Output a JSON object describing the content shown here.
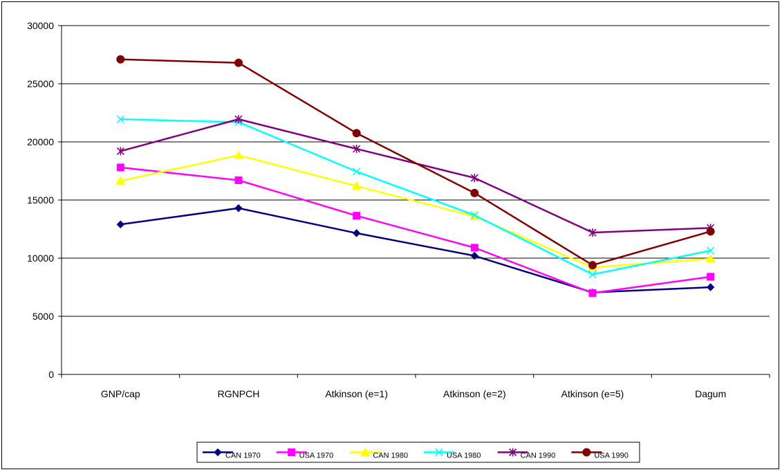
{
  "chart_data": {
    "type": "line",
    "title": "",
    "xlabel": "",
    "ylabel": "",
    "categories": [
      "GNP/cap",
      "RGNPCH",
      "Atkinson (e=1)",
      "Atkinson (e=2)",
      "Atkinson (e=5)",
      "Dagum"
    ],
    "ylim": [
      0,
      30000
    ],
    "yticks": [
      0,
      5000,
      10000,
      15000,
      20000,
      25000,
      30000
    ],
    "grid": "horizontal major gridlines",
    "legend_position": "bottom",
    "series": [
      {
        "name": "CAN 1970",
        "color": "#000080",
        "marker": "diamond",
        "values": [
          12900,
          14300,
          12150,
          10200,
          7050,
          7500
        ]
      },
      {
        "name": "USA 1970",
        "color": "#FF00FF",
        "marker": "square",
        "values": [
          17800,
          16700,
          13650,
          10900,
          7000,
          8400
        ]
      },
      {
        "name": "CAN 1980",
        "color": "#FFFF00",
        "marker": "triangle",
        "values": [
          16650,
          18850,
          16200,
          13600,
          9200,
          9950
        ]
      },
      {
        "name": "USA 1980",
        "color": "#00FFFF",
        "marker": "x",
        "values": [
          21950,
          21700,
          17450,
          13700,
          8600,
          10650
        ]
      },
      {
        "name": "CAN 1990",
        "color": "#800080",
        "marker": "star",
        "values": [
          19200,
          21950,
          19400,
          16900,
          12200,
          12600
        ]
      },
      {
        "name": "USA 1990",
        "color": "#800000",
        "marker": "circle",
        "values": [
          27100,
          26800,
          20750,
          15600,
          9400,
          12300
        ]
      }
    ]
  }
}
